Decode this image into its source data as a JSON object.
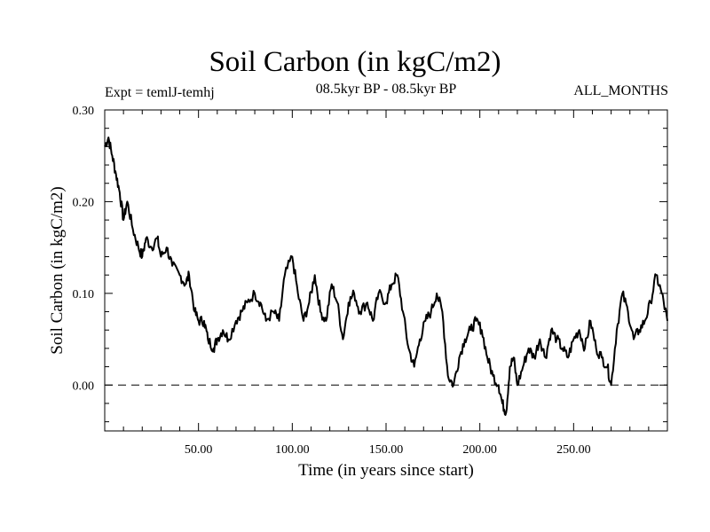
{
  "chart_data": {
    "type": "line",
    "title": "Soil Carbon (in kgC/m2)",
    "subtitle": "08.5kyr BP - 08.5kyr BP",
    "expt_label": "Expt = temlJ-temhj",
    "months_label": "ALL_MONTHS",
    "xlabel": "Time (in years since start)",
    "ylabel": "Soil Carbon (in kgC/m2)",
    "xlim": [
      0,
      300
    ],
    "ylim": [
      -0.05,
      0.3
    ],
    "x_ticks": [
      50,
      100,
      150,
      200,
      250
    ],
    "x_tick_labels": [
      "50.00",
      "100.00",
      "150.00",
      "200.00",
      "250.00"
    ],
    "y_ticks": [
      0.0,
      0.1,
      0.2,
      0.3
    ],
    "y_tick_labels": [
      "0.00",
      "0.10",
      "0.20",
      "0.30"
    ],
    "reference_line": {
      "y": 0.0,
      "style": "dashed"
    },
    "series": [
      {
        "name": "Soil Carbon",
        "color": "#000000",
        "x": [
          0,
          2,
          4,
          6,
          8,
          10,
          12,
          15,
          18,
          20,
          22,
          25,
          28,
          30,
          33,
          36,
          40,
          43,
          45,
          48,
          50,
          53,
          55,
          58,
          60,
          63,
          66,
          70,
          73,
          76,
          80,
          83,
          86,
          90,
          93,
          96,
          100,
          103,
          106,
          109,
          112,
          115,
          118,
          121,
          124,
          127,
          130,
          133,
          136,
          140,
          143,
          146,
          150,
          153,
          156,
          159,
          162,
          165,
          168,
          171,
          174,
          177,
          180,
          183,
          186,
          189,
          192,
          195,
          198,
          201,
          204,
          207,
          210,
          212,
          214,
          216,
          218,
          220,
          223,
          226,
          229,
          232,
          235,
          238,
          241,
          244,
          247,
          250,
          253,
          256,
          259,
          262,
          265,
          268,
          270,
          273,
          276,
          279,
          282,
          285,
          288,
          291,
          294,
          297,
          300
        ],
        "values": [
          0.26,
          0.27,
          0.25,
          0.23,
          0.21,
          0.18,
          0.2,
          0.17,
          0.15,
          0.14,
          0.16,
          0.15,
          0.16,
          0.14,
          0.15,
          0.13,
          0.12,
          0.11,
          0.12,
          0.08,
          0.07,
          0.07,
          0.05,
          0.04,
          0.05,
          0.06,
          0.05,
          0.07,
          0.08,
          0.09,
          0.1,
          0.09,
          0.07,
          0.08,
          0.07,
          0.12,
          0.14,
          0.1,
          0.07,
          0.09,
          0.12,
          0.08,
          0.07,
          0.11,
          0.09,
          0.05,
          0.09,
          0.1,
          0.08,
          0.09,
          0.07,
          0.1,
          0.09,
          0.11,
          0.12,
          0.08,
          0.04,
          0.02,
          0.05,
          0.07,
          0.08,
          0.1,
          0.08,
          0.01,
          0.0,
          0.03,
          0.05,
          0.06,
          0.07,
          0.06,
          0.03,
          0.01,
          0.0,
          -0.02,
          -0.03,
          0.02,
          0.03,
          0.0,
          0.02,
          0.04,
          0.03,
          0.05,
          0.03,
          0.06,
          0.05,
          0.04,
          0.03,
          0.05,
          0.06,
          0.04,
          0.07,
          0.04,
          0.03,
          0.02,
          0.0,
          0.06,
          0.1,
          0.08,
          0.05,
          0.06,
          0.07,
          0.09,
          0.12,
          0.1,
          0.07
        ]
      }
    ]
  }
}
